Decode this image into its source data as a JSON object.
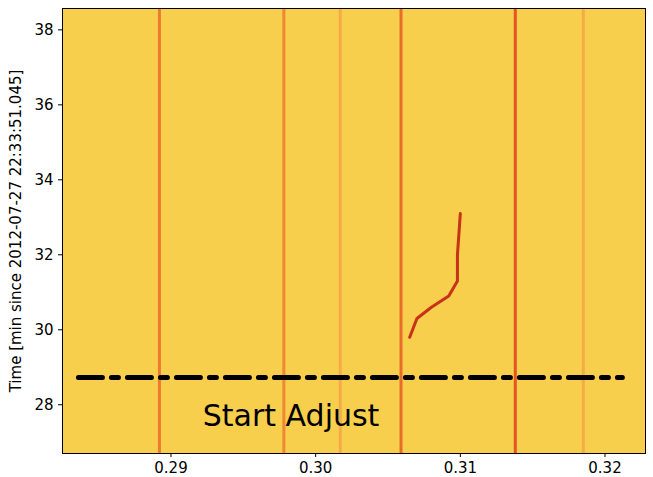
{
  "chart_data": {
    "type": "spectrogram",
    "ylabel": "Time [min since 2012-07-27 22:33:51.045]",
    "xlim": [
      0.2825,
      0.3228
    ],
    "ylim": [
      26.7,
      38.57
    ],
    "xticks": [
      {
        "value": 0.29,
        "label": "0.29"
      },
      {
        "value": 0.3,
        "label": "0.30"
      },
      {
        "value": 0.31,
        "label": "0.31"
      },
      {
        "value": 0.32,
        "label": "0.32"
      }
    ],
    "yticks": [
      28,
      30,
      32,
      34,
      36,
      38
    ],
    "color": "#f8cf4c",
    "lines": [
      {
        "x": 0.2892,
        "color": "#ec6a2c"
      },
      {
        "x": 0.2978,
        "color": "#ee7a34"
      },
      {
        "x": 0.3017,
        "color": "#f4a446"
      },
      {
        "x": 0.3059,
        "color": "#e85a24"
      },
      {
        "x": 0.3138,
        "color": "#e0401c"
      },
      {
        "x": 0.3185,
        "color": "#f4a446"
      }
    ],
    "track": {
      "x": [
        0.3065,
        0.307,
        0.308,
        0.3092,
        0.3098,
        0.3098,
        0.31
      ],
      "y": [
        29.8,
        30.3,
        30.6,
        30.9,
        31.3,
        32.0,
        33.1
      ],
      "color": "#c8321a"
    },
    "annotation": {
      "text": "Start Adjust",
      "x": 0.2983,
      "y": 27.7,
      "line_y": 28.73,
      "line_x": [
        0.2836,
        0.3212
      ]
    }
  }
}
